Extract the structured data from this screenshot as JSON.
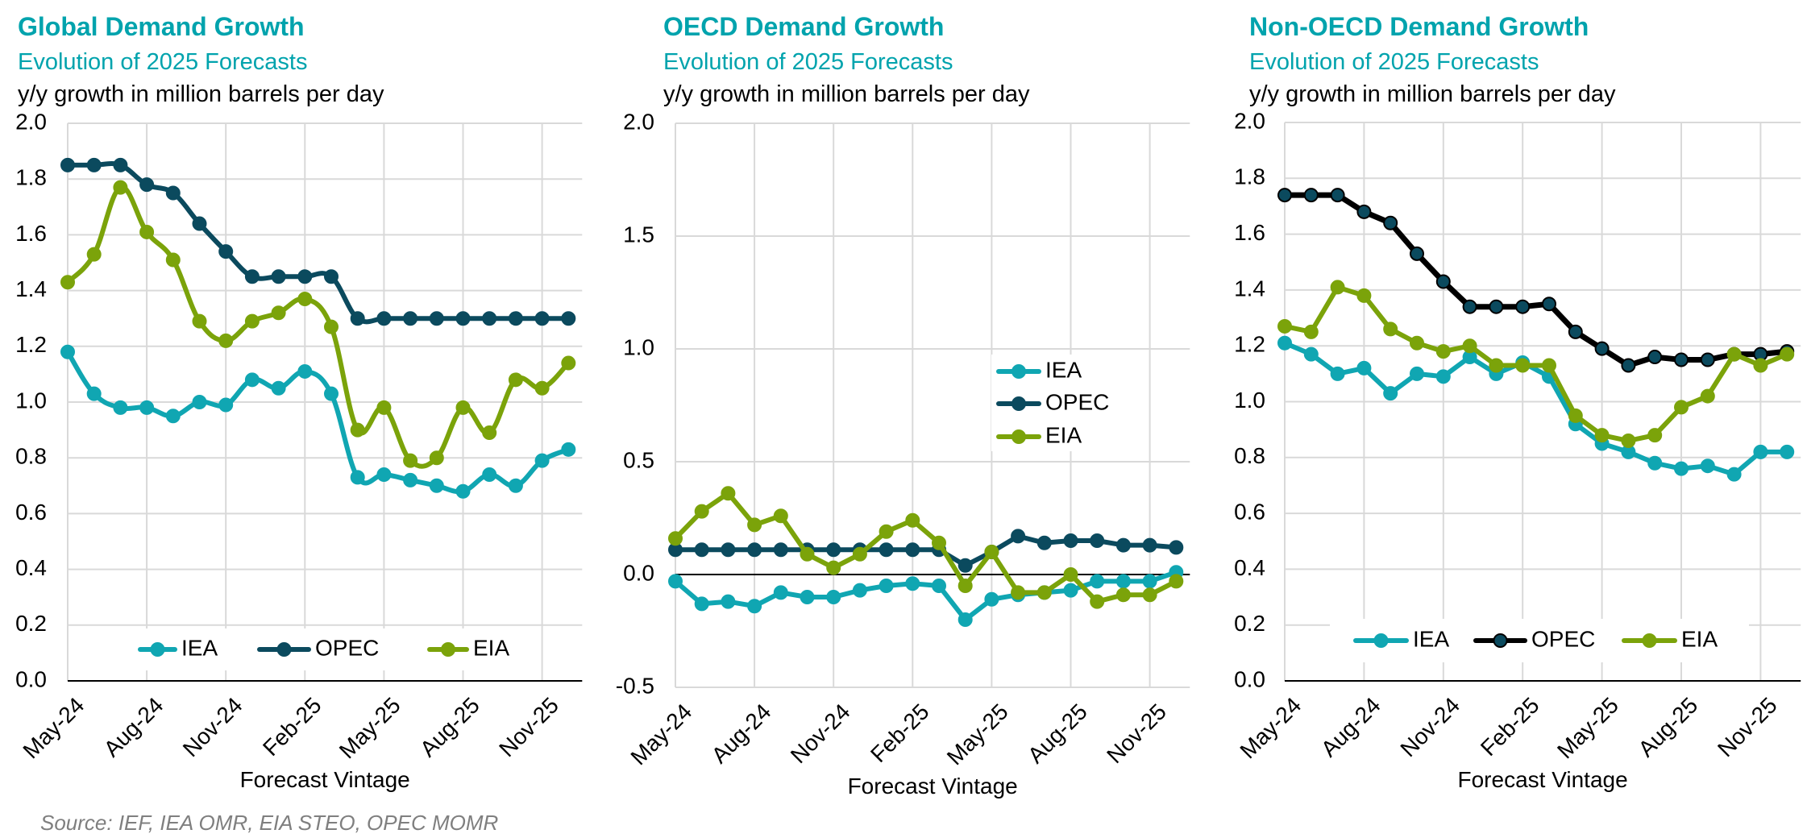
{
  "colors": {
    "title": "#00A3AD",
    "IEA": "#10A6B2",
    "OPEC": "#0B4A5E",
    "OPEC_line_nonoecd": "#000000",
    "EIA": "#7BA30A",
    "grid": "#D9D9D9",
    "zero_line": "#000000"
  },
  "source": "Source: IEF, IEA OMR, EIA STEO, OPEC MOMR",
  "chart_data": [
    {
      "type": "line",
      "title": "Global Demand Growth",
      "subtitle": "Evolution of 2025 Forecasts",
      "ylabel": "y/y growth in million barrels per day",
      "xlabel": "Forecast Vintage",
      "x": [
        "May-24",
        "Jun-24",
        "Jul-24",
        "Aug-24",
        "Sep-24",
        "Oct-24",
        "Nov-24",
        "Dec-24",
        "Jan-25",
        "Feb-25",
        "Mar-25",
        "Apr-25",
        "May-25",
        "Jun-25",
        "Jul-25",
        "Aug-25",
        "Sep-25",
        "Oct-25",
        "Nov-25",
        "Dec-25"
      ],
      "xtick_labels": [
        "May-24",
        "Aug-24",
        "Nov-24",
        "Feb-25",
        "May-25",
        "Aug-25",
        "Nov-25"
      ],
      "ylim": [
        0,
        2.0
      ],
      "yticks": [
        "0.0",
        "0.2",
        "0.4",
        "0.6",
        "0.8",
        "1.0",
        "1.2",
        "1.4",
        "1.6",
        "1.8",
        "2.0"
      ],
      "grid": true,
      "smooth": true,
      "legend": "bottom",
      "series": [
        {
          "name": "IEA",
          "values": [
            1.18,
            1.03,
            0.98,
            0.98,
            0.95,
            1.0,
            0.99,
            1.08,
            1.05,
            1.11,
            1.03,
            0.73,
            0.74,
            0.72,
            0.7,
            0.68,
            0.74,
            0.7,
            0.79,
            0.83
          ]
        },
        {
          "name": "OPEC",
          "values": [
            1.85,
            1.85,
            1.85,
            1.78,
            1.75,
            1.64,
            1.54,
            1.45,
            1.45,
            1.45,
            1.45,
            1.3,
            1.3,
            1.3,
            1.3,
            1.3,
            1.3,
            1.3,
            1.3,
            1.3
          ]
        },
        {
          "name": "EIA",
          "values": [
            1.43,
            1.53,
            1.77,
            1.61,
            1.51,
            1.29,
            1.22,
            1.29,
            1.32,
            1.37,
            1.27,
            0.9,
            0.98,
            0.79,
            0.8,
            0.98,
            0.89,
            1.08,
            1.05,
            1.14
          ]
        }
      ]
    },
    {
      "type": "line",
      "title": "OECD Demand Growth",
      "subtitle": "Evolution of 2025 Forecasts",
      "ylabel": "y/y growth in million barrels per day",
      "xlabel": "Forecast Vintage",
      "x": [
        "May-24",
        "Jun-24",
        "Jul-24",
        "Aug-24",
        "Sep-24",
        "Oct-24",
        "Nov-24",
        "Dec-24",
        "Jan-25",
        "Feb-25",
        "Mar-25",
        "Apr-25",
        "May-25",
        "Jun-25",
        "Jul-25",
        "Aug-25",
        "Sep-25",
        "Oct-25",
        "Nov-25",
        "Dec-25"
      ],
      "xtick_labels": [
        "May-24",
        "Aug-24",
        "Nov-24",
        "Feb-25",
        "May-25",
        "Aug-25",
        "Nov-25"
      ],
      "ylim": [
        -0.5,
        2.0
      ],
      "yticks": [
        "-0.5",
        "0.0",
        "0.5",
        "1.0",
        "1.5",
        "2.0"
      ],
      "grid": true,
      "smooth": false,
      "legend": "center-right",
      "series": [
        {
          "name": "IEA",
          "values": [
            -0.03,
            -0.13,
            -0.12,
            -0.14,
            -0.08,
            -0.1,
            -0.1,
            -0.07,
            -0.05,
            -0.04,
            -0.05,
            -0.2,
            -0.11,
            -0.09,
            -0.08,
            -0.07,
            -0.03,
            -0.03,
            -0.03,
            0.01
          ]
        },
        {
          "name": "OPEC",
          "values": [
            0.11,
            0.11,
            0.11,
            0.11,
            0.11,
            0.11,
            0.11,
            0.11,
            0.11,
            0.11,
            0.11,
            0.04,
            0.1,
            0.17,
            0.14,
            0.15,
            0.15,
            0.13,
            0.13,
            0.12
          ]
        },
        {
          "name": "EIA",
          "values": [
            0.16,
            0.28,
            0.36,
            0.22,
            0.26,
            0.09,
            0.03,
            0.09,
            0.19,
            0.24,
            0.14,
            -0.05,
            0.1,
            -0.08,
            -0.08,
            0.0,
            -0.12,
            -0.09,
            -0.09,
            -0.03
          ]
        }
      ]
    },
    {
      "type": "line",
      "title": "Non-OECD Demand Growth",
      "subtitle": "Evolution of 2025 Forecasts",
      "ylabel": "y/y growth in million barrels per day",
      "xlabel": "Forecast Vintage",
      "x": [
        "May-24",
        "Jun-24",
        "Jul-24",
        "Aug-24",
        "Sep-24",
        "Oct-24",
        "Nov-24",
        "Dec-24",
        "Jan-25",
        "Feb-25",
        "Mar-25",
        "Apr-25",
        "May-25",
        "Jun-25",
        "Jul-25",
        "Aug-25",
        "Sep-25",
        "Oct-25",
        "Nov-25",
        "Dec-25"
      ],
      "xtick_labels": [
        "May-24",
        "Aug-24",
        "Nov-24",
        "Feb-25",
        "May-25",
        "Aug-25",
        "Nov-25"
      ],
      "ylim": [
        0,
        2.0
      ],
      "yticks": [
        "0.0",
        "0.2",
        "0.4",
        "0.6",
        "0.8",
        "1.0",
        "1.2",
        "1.4",
        "1.6",
        "1.8",
        "2.0"
      ],
      "grid": true,
      "smooth": false,
      "legend": "bottom",
      "series": [
        {
          "name": "IEA",
          "values": [
            1.21,
            1.17,
            1.1,
            1.12,
            1.03,
            1.1,
            1.09,
            1.16,
            1.1,
            1.14,
            1.09,
            0.92,
            0.85,
            0.82,
            0.78,
            0.76,
            0.77,
            0.74,
            0.82,
            0.82
          ]
        },
        {
          "name": "OPEC",
          "values": [
            1.74,
            1.74,
            1.74,
            1.68,
            1.64,
            1.53,
            1.43,
            1.34,
            1.34,
            1.34,
            1.35,
            1.25,
            1.19,
            1.13,
            1.16,
            1.15,
            1.15,
            1.17,
            1.17,
            1.18
          ]
        },
        {
          "name": "EIA",
          "values": [
            1.27,
            1.25,
            1.41,
            1.38,
            1.26,
            1.21,
            1.18,
            1.2,
            1.13,
            1.13,
            1.13,
            0.95,
            0.88,
            0.86,
            0.88,
            0.98,
            1.02,
            1.17,
            1.13,
            1.17
          ]
        }
      ]
    }
  ]
}
